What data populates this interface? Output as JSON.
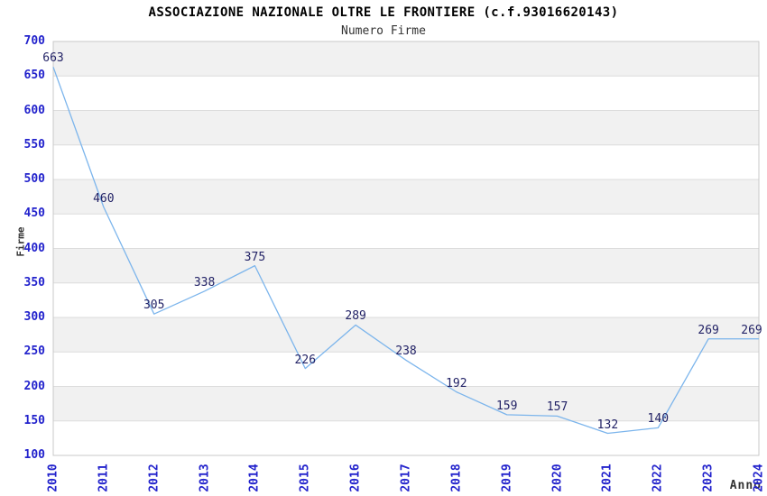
{
  "chart_data": {
    "type": "line",
    "title": "ASSOCIAZIONE NAZIONALE OLTRE LE FRONTIERE (c.f.93016620143)",
    "subtitle": "Numero Firme",
    "xlabel": "Anno",
    "ylabel": "Firme",
    "x": [
      2010,
      2011,
      2012,
      2013,
      2014,
      2015,
      2016,
      2017,
      2018,
      2019,
      2020,
      2021,
      2022,
      2023,
      2024
    ],
    "values": [
      663,
      460,
      305,
      338,
      375,
      226,
      289,
      238,
      192,
      159,
      157,
      132,
      140,
      269,
      269
    ],
    "ylim": [
      100,
      700
    ],
    "ytick_step": 50,
    "yticks": [
      700,
      650,
      600,
      550,
      500,
      450,
      400,
      350,
      300,
      250,
      200,
      150,
      100
    ],
    "grid": "horizontal-bands-alternating",
    "legend": "none",
    "markers": "none",
    "data_labels": "above-points",
    "colors": {
      "line": "#7cb5ec",
      "tick_label": "#2222cc",
      "data_label": "#222266",
      "band": "#f1f1f1",
      "gridline": "#dcdcdc",
      "frame": "#c9c9c9",
      "title": "#000000",
      "subtitle": "#333333",
      "axis_title": "#333333",
      "background": "#ffffff"
    }
  }
}
